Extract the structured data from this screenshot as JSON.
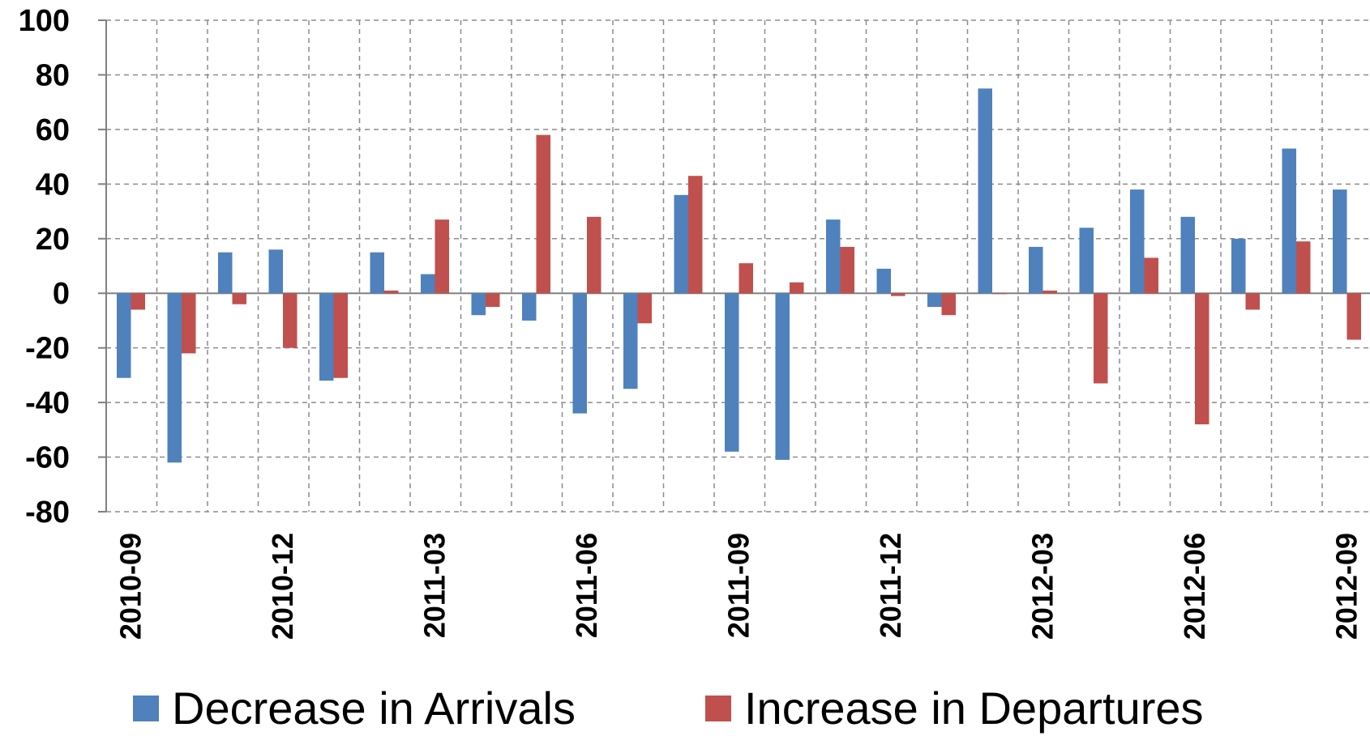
{
  "chart_data": {
    "type": "bar",
    "categories": [
      "2010-09",
      "2010-10",
      "2010-11",
      "2010-12",
      "2011-01",
      "2011-02",
      "2011-03",
      "2011-04",
      "2011-05",
      "2011-06",
      "2011-07",
      "2011-08",
      "2011-09",
      "2011-10",
      "2011-11",
      "2011-12",
      "2012-01",
      "2012-02",
      "2012-03",
      "2012-04",
      "2012-05",
      "2012-06",
      "2012-07",
      "2012-08",
      "2012-09"
    ],
    "xtick_labels": [
      "2010-09",
      "2010-12",
      "2011-03",
      "2011-06",
      "2011-09",
      "2011-12",
      "2012-03",
      "2012-06",
      "2012-09"
    ],
    "series": [
      {
        "name": "Decrease in Arrivals",
        "color": "#4F81BD",
        "values": [
          -31,
          -62,
          15,
          16,
          -32,
          15,
          7,
          -8,
          -10,
          -44,
          -35,
          36,
          -58,
          -61,
          27,
          9,
          -5,
          75,
          17,
          24,
          38,
          28,
          20,
          53,
          38
        ]
      },
      {
        "name": "Increase in Departures",
        "color": "#C0504D",
        "values": [
          -6,
          -22,
          -4,
          -20,
          -31,
          1,
          27,
          -5,
          58,
          28,
          -11,
          43,
          11,
          4,
          17,
          -1,
          -8,
          0,
          1,
          -33,
          13,
          -48,
          -6,
          19,
          -17
        ]
      }
    ],
    "ylim": [
      -80,
      100
    ],
    "yticks": [
      -80,
      -60,
      -40,
      -20,
      0,
      20,
      40,
      60,
      80,
      100
    ],
    "grid": true,
    "legend": "bottom",
    "title": "",
    "xlabel": "",
    "ylabel": ""
  }
}
